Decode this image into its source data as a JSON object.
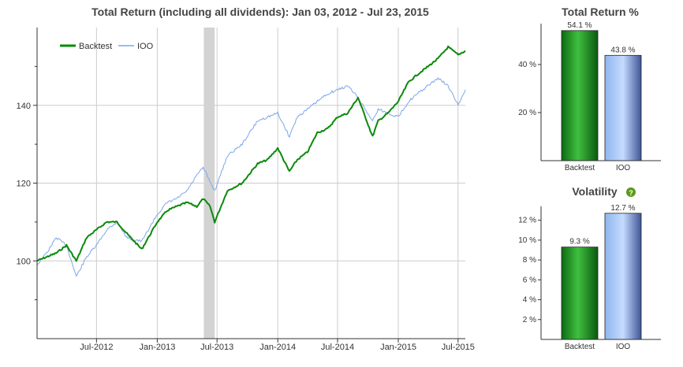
{
  "colors": {
    "backtest": "#0a8a0a",
    "ioo": "#7ca6e8",
    "axis": "#333333",
    "grid": "#cccccc",
    "shade": "#d3d3d3",
    "help": "#5a9a1a"
  },
  "chart_data": [
    {
      "type": "line",
      "title": "Total Return (including all dividends): Jan 03, 2012 - Jul 23, 2015",
      "xlabel": "",
      "ylabel": "",
      "x_ticks": [
        "Jul-2012",
        "Jan-2013",
        "Jul-2013",
        "Jan-2014",
        "Jul-2014",
        "Jan-2015",
        "Jul-2015"
      ],
      "y_ticks": [
        "100",
        "120",
        "140"
      ],
      "ylim": [
        80,
        160
      ],
      "xlim": [
        "2012-01-03",
        "2015-07-23"
      ],
      "grid": true,
      "legend": "top-left",
      "shaded_region": [
        "2013-05-22",
        "2013-06-24"
      ],
      "series": [
        {
          "name": "Backtest",
          "color": "#0a8a0a",
          "x": [
            "2012-01-03",
            "2012-02-01",
            "2012-03-01",
            "2012-04-01",
            "2012-05-01",
            "2012-06-01",
            "2012-07-01",
            "2012-08-01",
            "2012-09-01",
            "2012-10-01",
            "2012-11-15",
            "2013-01-01",
            "2013-02-01",
            "2013-03-01",
            "2013-04-01",
            "2013-05-01",
            "2013-05-20",
            "2013-06-10",
            "2013-06-24",
            "2013-08-01",
            "2013-09-15",
            "2013-11-01",
            "2013-12-01",
            "2014-01-01",
            "2014-02-05",
            "2014-03-01",
            "2014-04-01",
            "2014-05-01",
            "2014-06-01",
            "2014-07-01",
            "2014-08-01",
            "2014-09-01",
            "2014-10-15",
            "2014-11-01",
            "2014-12-01",
            "2015-01-01",
            "2015-02-01",
            "2015-03-01",
            "2015-04-01",
            "2015-05-01",
            "2015-06-01",
            "2015-07-01",
            "2015-07-23"
          ],
          "y": [
            100,
            101,
            102,
            104,
            100,
            106,
            108,
            110,
            110,
            107,
            103,
            110,
            113,
            114,
            115,
            114,
            116,
            114,
            110,
            118,
            120,
            125,
            126,
            129,
            123,
            126,
            128,
            133,
            134,
            137,
            138,
            142,
            132,
            136,
            138,
            141,
            146,
            148,
            150,
            152,
            155,
            153,
            154
          ]
        },
        {
          "name": "IOO",
          "color": "#7ca6e8",
          "x": [
            "2012-01-03",
            "2012-02-01",
            "2012-03-01",
            "2012-04-01",
            "2012-05-01",
            "2012-06-01",
            "2012-07-01",
            "2012-08-01",
            "2012-09-01",
            "2012-10-01",
            "2012-11-15",
            "2013-01-01",
            "2013-02-01",
            "2013-03-01",
            "2013-04-01",
            "2013-05-01",
            "2013-05-20",
            "2013-06-24",
            "2013-08-01",
            "2013-09-15",
            "2013-11-01",
            "2013-12-01",
            "2014-01-01",
            "2014-02-05",
            "2014-03-01",
            "2014-04-01",
            "2014-05-01",
            "2014-06-01",
            "2014-07-01",
            "2014-08-01",
            "2014-09-01",
            "2014-10-15",
            "2014-11-01",
            "2014-12-01",
            "2015-01-01",
            "2015-02-01",
            "2015-03-01",
            "2015-04-01",
            "2015-05-01",
            "2015-06-01",
            "2015-07-01",
            "2015-07-23"
          ],
          "y": [
            99,
            102,
            106,
            104,
            96,
            101,
            104,
            108,
            110,
            106,
            105,
            112,
            115,
            116,
            118,
            122,
            124,
            118,
            127,
            130,
            136,
            137,
            138,
            132,
            137,
            139,
            141,
            143,
            144,
            145,
            142,
            136,
            139,
            138,
            137,
            141,
            143,
            145,
            147,
            145,
            140,
            144
          ]
        }
      ]
    },
    {
      "type": "bar",
      "title": "Total Return %",
      "categories": [
        "Backtest",
        "IOO"
      ],
      "values": [
        54.1,
        43.8
      ],
      "data_labels": [
        "54.1 %",
        "43.8 %"
      ],
      "y_ticks": [
        "20 %",
        "40 %"
      ],
      "ylim": [
        0,
        57
      ]
    },
    {
      "type": "bar",
      "title": "Volatility",
      "categories": [
        "Backtest",
        "IOO"
      ],
      "values": [
        9.3,
        12.7
      ],
      "data_labels": [
        "9.3 %",
        "12.7 %"
      ],
      "y_ticks": [
        "2 %",
        "4 %",
        "6 %",
        "8 %",
        "10 %",
        "12 %"
      ],
      "ylim": [
        0,
        13.4
      ]
    }
  ],
  "help_icon": "question-mark-help-icon",
  "help_glyph": "?"
}
